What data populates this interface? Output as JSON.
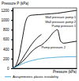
{
  "chart_data": {
    "type": "line",
    "y_label": "Pressure P (kPa)",
    "x_label": "Pressure (kPa)",
    "xlim": [
      0,
      100
    ],
    "ylim": [
      0,
      1250
    ],
    "yticks": [
      0,
      200,
      400,
      600,
      800,
      1000,
      1200
    ],
    "tick_labels": "y",
    "legend": "bottom",
    "series": [
      {
        "name": "Wall pressure pump 1",
        "color": "#000000",
        "x": [
          0,
          5,
          10,
          15,
          20,
          25,
          30,
          40,
          50,
          60,
          70,
          80,
          90,
          100
        ],
        "values": [
          0,
          60,
          250,
          600,
          950,
          1080,
          1100,
          1110,
          1120,
          1130,
          1140,
          1160,
          1180,
          1200
        ]
      },
      {
        "name": "Pump pressure 1",
        "color": "#000000",
        "x": [
          0,
          10,
          20,
          30,
          40,
          45
        ],
        "values": [
          0,
          100,
          300,
          500,
          650,
          700
        ]
      },
      {
        "name": "Pump pressure 2",
        "color": "#000000",
        "x": [
          0,
          10,
          20,
          30,
          40,
          45
        ],
        "values": [
          0,
          80,
          200,
          350,
          450,
          480
        ]
      },
      {
        "name": "Wall pressure pump 2",
        "color": "#000000",
        "x": [
          45,
          55,
          65,
          70,
          75,
          80,
          90,
          100
        ],
        "values": [
          480,
          600,
          760,
          800,
          560,
          520,
          540,
          560
        ]
      },
      {
        "name": "Axisymmetric plastic instability",
        "color": "#4aa8d8",
        "x": [
          0,
          10,
          20,
          30,
          40,
          50,
          60,
          70,
          80,
          90,
          100
        ],
        "values": [
          0,
          60,
          120,
          160,
          190,
          210,
          220,
          230,
          235,
          240,
          240
        ]
      }
    ]
  }
}
